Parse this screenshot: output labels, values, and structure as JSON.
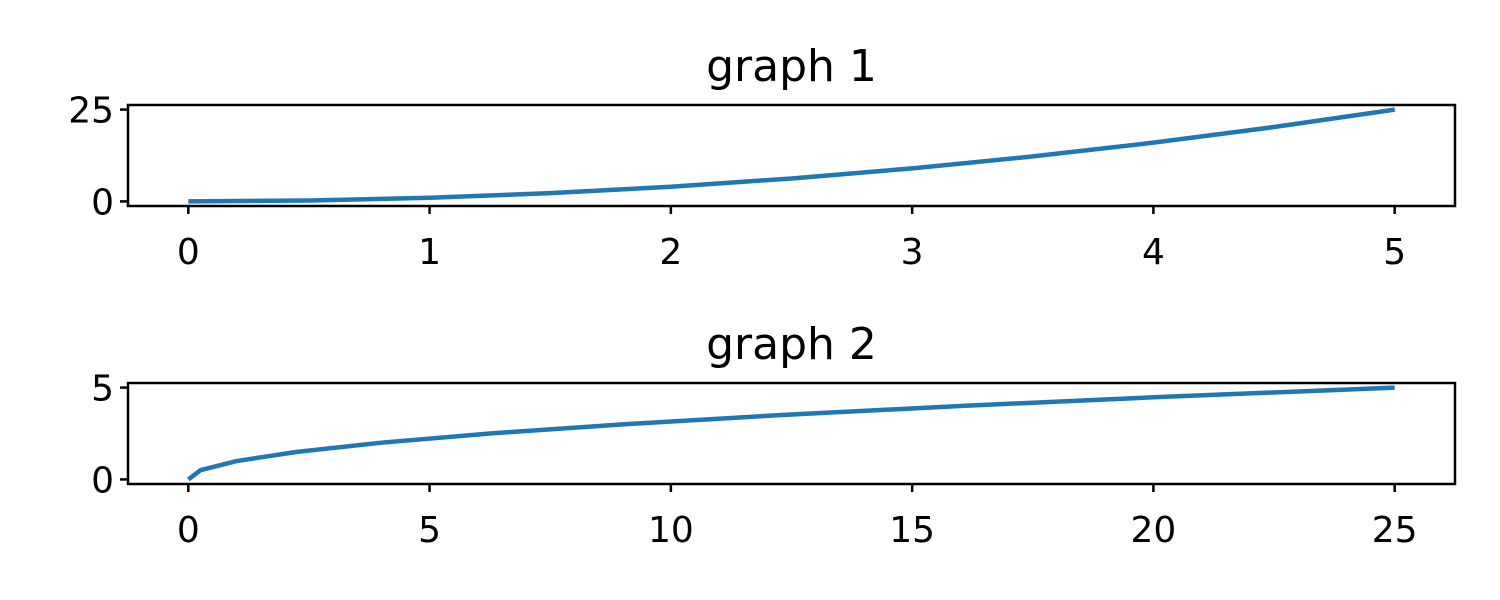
{
  "chart_data": [
    {
      "type": "line",
      "title": "graph 1",
      "xlabel": "",
      "ylabel": "",
      "xlim": [
        -0.25,
        5.25
      ],
      "ylim": [
        -1.25,
        26.25
      ],
      "xticks": [
        0,
        1,
        2,
        3,
        4,
        5
      ],
      "xtick_labels": [
        "0",
        "1",
        "2",
        "3",
        "4",
        "5"
      ],
      "yticks": [
        0,
        25
      ],
      "ytick_labels": [
        "0",
        "25"
      ],
      "grid": false,
      "legend": "none",
      "series": [
        {
          "color": "#1f77b4",
          "x": [
            0,
            0.5,
            1,
            1.5,
            2,
            2.5,
            3,
            3.5,
            4,
            4.5,
            5
          ],
          "y": [
            0,
            0.25,
            1,
            2.25,
            4,
            6.25,
            9,
            12.25,
            16,
            20.25,
            25
          ]
        }
      ]
    },
    {
      "type": "line",
      "title": "graph 2",
      "xlabel": "",
      "ylabel": "",
      "xlim": [
        -1.25,
        26.25
      ],
      "ylim": [
        -0.25,
        5.25
      ],
      "xticks": [
        0,
        5,
        10,
        15,
        20,
        25
      ],
      "xtick_labels": [
        "0",
        "5",
        "10",
        "15",
        "20",
        "25"
      ],
      "yticks": [
        0,
        5
      ],
      "ytick_labels": [
        "0",
        "5"
      ],
      "grid": false,
      "legend": "none",
      "series": [
        {
          "color": "#1f77b4",
          "x": [
            0,
            0.25,
            1,
            2.25,
            4,
            6.25,
            9,
            12.25,
            16,
            20.25,
            25
          ],
          "y": [
            0,
            0.5,
            1,
            1.5,
            2,
            2.5,
            3,
            3.5,
            4,
            4.5,
            5
          ]
        }
      ]
    }
  ]
}
